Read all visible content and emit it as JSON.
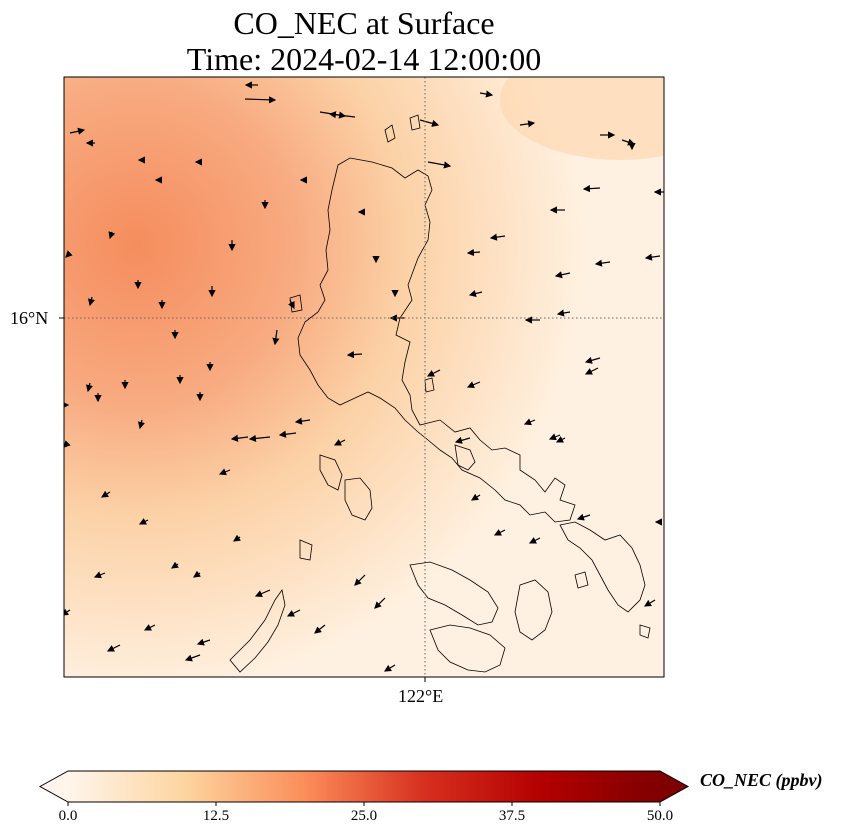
{
  "title": {
    "line1": "CO_NEC at Surface",
    "line2": "Time: 2024-02-14 12:00:00"
  },
  "axes": {
    "lat_tick": "16°N",
    "lon_tick": "122°E"
  },
  "colorbar": {
    "label": "CO_NEC (ppbv)",
    "min": 0,
    "max": 50,
    "ticks": [
      "0.0",
      "12.5",
      "25.0",
      "37.5",
      "50.0"
    ],
    "colors": [
      "#fff5eb",
      "#fdd49e",
      "#fc8d59",
      "#d7301f",
      "#b30000",
      "#7f0000"
    ],
    "extend": "both"
  },
  "map": {
    "gridlines": "dotted",
    "field_colors": {
      "high_west": "#f7a077",
      "mid": "#fcd0a8",
      "low_east": "#fff0df"
    },
    "wind_vectors": "black quiver arrows"
  }
}
